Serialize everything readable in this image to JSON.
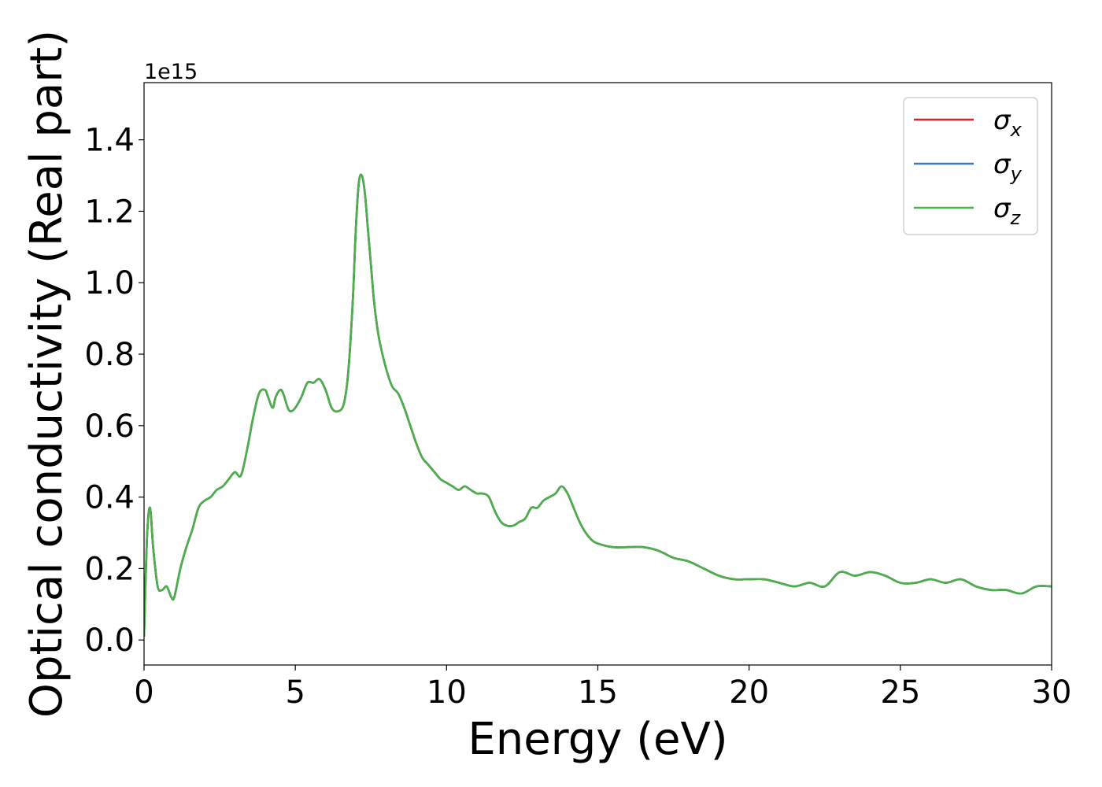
{
  "chart_data": {
    "type": "line",
    "xlabel": "Energy (eV)",
    "ylabel": "Optical conductivity (Real part)",
    "offset_text": "1e15",
    "y_scale_factor": 1000000000000000.0,
    "xlim": [
      0,
      30
    ],
    "ylim": [
      -0.07,
      1.56
    ],
    "xticks": [
      0,
      5,
      10,
      15,
      20,
      25,
      30
    ],
    "xtick_labels": [
      "0",
      "5",
      "10",
      "15",
      "20",
      "25",
      "30"
    ],
    "yticks": [
      0.0,
      0.2,
      0.4,
      0.6,
      0.8,
      1.0,
      1.2,
      1.4
    ],
    "ytick_labels": [
      "0.0",
      "0.2",
      "0.4",
      "0.6",
      "0.8",
      "1.0",
      "1.2",
      "1.4"
    ],
    "grid": false,
    "legend_position": "top-right",
    "series": [
      {
        "name": "σx",
        "symbol": "σ",
        "subscript": "x",
        "color": "#d62728",
        "x": [
          0,
          0.1,
          0.2,
          0.3,
          0.45,
          0.6,
          0.75,
          0.9,
          1.0,
          1.2,
          1.4,
          1.6,
          1.8,
          2.0,
          2.2,
          2.4,
          2.6,
          2.8,
          3.0,
          3.2,
          3.4,
          3.6,
          3.8,
          4.0,
          4.1,
          4.25,
          4.35,
          4.5,
          4.6,
          4.75,
          4.85,
          5.0,
          5.2,
          5.4,
          5.6,
          5.8,
          6.0,
          6.2,
          6.4,
          6.6,
          6.75,
          6.9,
          7.0,
          7.1,
          7.2,
          7.3,
          7.4,
          7.5,
          7.6,
          7.7,
          7.8,
          8.0,
          8.2,
          8.4,
          8.6,
          8.8,
          9.0,
          9.2,
          9.4,
          9.6,
          9.8,
          10.0,
          10.2,
          10.4,
          10.6,
          10.8,
          11.0,
          11.2,
          11.4,
          11.6,
          11.8,
          12.0,
          12.2,
          12.4,
          12.6,
          12.8,
          13.0,
          13.2,
          13.4,
          13.6,
          13.8,
          14.0,
          14.2,
          14.4,
          14.6,
          14.8,
          15.0,
          15.5,
          16.0,
          16.5,
          17.0,
          17.5,
          18.0,
          18.5,
          19.0,
          19.5,
          20.0,
          20.5,
          21.0,
          21.5,
          22.0,
          22.5,
          23.0,
          23.5,
          24.0,
          24.5,
          25.0,
          25.5,
          26.0,
          26.5,
          27.0,
          27.5,
          28.0,
          28.5,
          29.0,
          29.5,
          30.0
        ],
        "y": [
          0.01,
          0.29,
          0.37,
          0.26,
          0.15,
          0.14,
          0.15,
          0.12,
          0.12,
          0.2,
          0.26,
          0.31,
          0.37,
          0.39,
          0.4,
          0.42,
          0.43,
          0.45,
          0.47,
          0.46,
          0.53,
          0.62,
          0.69,
          0.7,
          0.68,
          0.65,
          0.68,
          0.7,
          0.69,
          0.65,
          0.64,
          0.65,
          0.68,
          0.72,
          0.72,
          0.73,
          0.7,
          0.65,
          0.64,
          0.66,
          0.75,
          0.95,
          1.15,
          1.28,
          1.3,
          1.25,
          1.15,
          1.05,
          0.95,
          0.88,
          0.83,
          0.76,
          0.71,
          0.69,
          0.65,
          0.6,
          0.55,
          0.51,
          0.49,
          0.47,
          0.45,
          0.44,
          0.43,
          0.42,
          0.43,
          0.42,
          0.41,
          0.41,
          0.4,
          0.36,
          0.33,
          0.32,
          0.32,
          0.33,
          0.34,
          0.37,
          0.37,
          0.39,
          0.4,
          0.41,
          0.43,
          0.41,
          0.37,
          0.33,
          0.3,
          0.28,
          0.27,
          0.26,
          0.26,
          0.26,
          0.25,
          0.23,
          0.22,
          0.2,
          0.18,
          0.17,
          0.17,
          0.17,
          0.16,
          0.15,
          0.16,
          0.15,
          0.19,
          0.18,
          0.19,
          0.18,
          0.16,
          0.16,
          0.17,
          0.16,
          0.17,
          0.15,
          0.14,
          0.14,
          0.13,
          0.15,
          0.15
        ]
      },
      {
        "name": "σy",
        "symbol": "σ",
        "subscript": "y",
        "color": "#3a7bbf",
        "x": [
          0,
          0.1,
          0.2,
          0.3,
          0.45,
          0.6,
          0.75,
          0.9,
          1.0,
          1.2,
          1.4,
          1.6,
          1.8,
          2.0,
          2.2,
          2.4,
          2.6,
          2.8,
          3.0,
          3.2,
          3.4,
          3.6,
          3.8,
          4.0,
          4.1,
          4.25,
          4.35,
          4.5,
          4.6,
          4.75,
          4.85,
          5.0,
          5.2,
          5.4,
          5.6,
          5.8,
          6.0,
          6.2,
          6.4,
          6.6,
          6.75,
          6.9,
          7.0,
          7.1,
          7.2,
          7.3,
          7.4,
          7.5,
          7.6,
          7.7,
          7.8,
          8.0,
          8.2,
          8.4,
          8.6,
          8.8,
          9.0,
          9.2,
          9.4,
          9.6,
          9.8,
          10.0,
          10.2,
          10.4,
          10.6,
          10.8,
          11.0,
          11.2,
          11.4,
          11.6,
          11.8,
          12.0,
          12.2,
          12.4,
          12.6,
          12.8,
          13.0,
          13.2,
          13.4,
          13.6,
          13.8,
          14.0,
          14.2,
          14.4,
          14.6,
          14.8,
          15.0,
          15.5,
          16.0,
          16.5,
          17.0,
          17.5,
          18.0,
          18.5,
          19.0,
          19.5,
          20.0,
          20.5,
          21.0,
          21.5,
          22.0,
          22.5,
          23.0,
          23.5,
          24.0,
          24.5,
          25.0,
          25.5,
          26.0,
          26.5,
          27.0,
          27.5,
          28.0,
          28.5,
          29.0,
          29.5,
          30.0
        ],
        "y": [
          0.01,
          0.29,
          0.37,
          0.26,
          0.15,
          0.14,
          0.15,
          0.12,
          0.12,
          0.2,
          0.26,
          0.31,
          0.37,
          0.39,
          0.4,
          0.42,
          0.43,
          0.45,
          0.47,
          0.46,
          0.53,
          0.62,
          0.69,
          0.7,
          0.68,
          0.65,
          0.68,
          0.7,
          0.69,
          0.65,
          0.64,
          0.65,
          0.68,
          0.72,
          0.72,
          0.73,
          0.7,
          0.65,
          0.64,
          0.66,
          0.75,
          0.95,
          1.15,
          1.28,
          1.3,
          1.25,
          1.15,
          1.05,
          0.95,
          0.88,
          0.83,
          0.76,
          0.71,
          0.69,
          0.65,
          0.6,
          0.55,
          0.51,
          0.49,
          0.47,
          0.45,
          0.44,
          0.43,
          0.42,
          0.43,
          0.42,
          0.41,
          0.41,
          0.4,
          0.36,
          0.33,
          0.32,
          0.32,
          0.33,
          0.34,
          0.37,
          0.37,
          0.39,
          0.4,
          0.41,
          0.43,
          0.41,
          0.37,
          0.33,
          0.3,
          0.28,
          0.27,
          0.26,
          0.26,
          0.26,
          0.25,
          0.23,
          0.22,
          0.2,
          0.18,
          0.17,
          0.17,
          0.17,
          0.16,
          0.15,
          0.16,
          0.15,
          0.19,
          0.18,
          0.19,
          0.18,
          0.16,
          0.16,
          0.17,
          0.16,
          0.17,
          0.15,
          0.14,
          0.14,
          0.13,
          0.15,
          0.15
        ]
      },
      {
        "name": "σz",
        "symbol": "σ",
        "subscript": "z",
        "color": "#4daf4a",
        "x": [
          0,
          0.1,
          0.2,
          0.3,
          0.45,
          0.6,
          0.75,
          0.9,
          1.0,
          1.2,
          1.4,
          1.6,
          1.8,
          2.0,
          2.2,
          2.4,
          2.6,
          2.8,
          3.0,
          3.2,
          3.4,
          3.6,
          3.8,
          4.0,
          4.1,
          4.25,
          4.35,
          4.5,
          4.6,
          4.75,
          4.85,
          5.0,
          5.2,
          5.4,
          5.6,
          5.8,
          6.0,
          6.2,
          6.4,
          6.6,
          6.75,
          6.9,
          7.0,
          7.1,
          7.2,
          7.3,
          7.4,
          7.5,
          7.6,
          7.7,
          7.8,
          8.0,
          8.2,
          8.4,
          8.6,
          8.8,
          9.0,
          9.2,
          9.4,
          9.6,
          9.8,
          10.0,
          10.2,
          10.4,
          10.6,
          10.8,
          11.0,
          11.2,
          11.4,
          11.6,
          11.8,
          12.0,
          12.2,
          12.4,
          12.6,
          12.8,
          13.0,
          13.2,
          13.4,
          13.6,
          13.8,
          14.0,
          14.2,
          14.4,
          14.6,
          14.8,
          15.0,
          15.5,
          16.0,
          16.5,
          17.0,
          17.5,
          18.0,
          18.5,
          19.0,
          19.5,
          20.0,
          20.5,
          21.0,
          21.5,
          22.0,
          22.5,
          23.0,
          23.5,
          24.0,
          24.5,
          25.0,
          25.5,
          26.0,
          26.5,
          27.0,
          27.5,
          28.0,
          28.5,
          29.0,
          29.5,
          30.0
        ],
        "y": [
          0.01,
          0.29,
          0.37,
          0.26,
          0.15,
          0.14,
          0.15,
          0.12,
          0.12,
          0.2,
          0.26,
          0.31,
          0.37,
          0.39,
          0.4,
          0.42,
          0.43,
          0.45,
          0.47,
          0.46,
          0.53,
          0.62,
          0.69,
          0.7,
          0.68,
          0.65,
          0.68,
          0.7,
          0.69,
          0.65,
          0.64,
          0.65,
          0.68,
          0.72,
          0.72,
          0.73,
          0.7,
          0.65,
          0.64,
          0.66,
          0.75,
          0.95,
          1.15,
          1.28,
          1.3,
          1.25,
          1.15,
          1.05,
          0.95,
          0.88,
          0.83,
          0.76,
          0.71,
          0.69,
          0.65,
          0.6,
          0.55,
          0.51,
          0.49,
          0.47,
          0.45,
          0.44,
          0.43,
          0.42,
          0.43,
          0.42,
          0.41,
          0.41,
          0.4,
          0.36,
          0.33,
          0.32,
          0.32,
          0.33,
          0.34,
          0.37,
          0.37,
          0.39,
          0.4,
          0.41,
          0.43,
          0.41,
          0.37,
          0.33,
          0.3,
          0.28,
          0.27,
          0.26,
          0.26,
          0.26,
          0.25,
          0.23,
          0.22,
          0.2,
          0.18,
          0.17,
          0.17,
          0.17,
          0.16,
          0.15,
          0.16,
          0.15,
          0.19,
          0.18,
          0.19,
          0.18,
          0.16,
          0.16,
          0.17,
          0.16,
          0.17,
          0.15,
          0.14,
          0.14,
          0.13,
          0.15,
          0.15
        ]
      }
    ]
  }
}
